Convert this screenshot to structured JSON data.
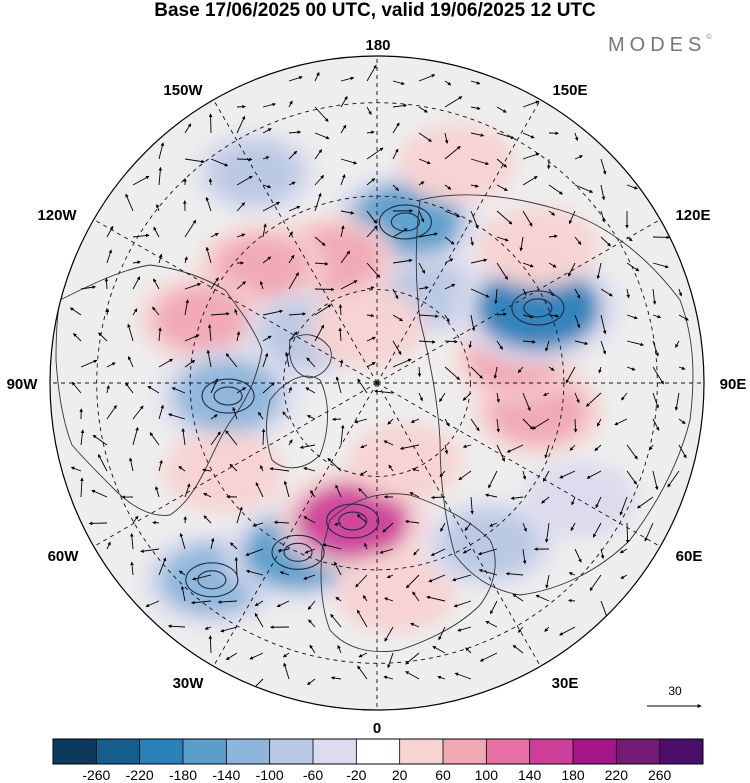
{
  "title": "Base 17/06/2025 00 UTC, valid 19/06/2025 12 UTC",
  "brand": "MODES",
  "brand_mark": "©",
  "longitude_labels": {
    "top": "180",
    "bottom": "0",
    "left": "90W",
    "right": "90E",
    "upper_left": "150W",
    "upper_right": "150E",
    "mid_upper_left": "120W",
    "mid_upper_right": "120E",
    "mid_lower_left": "60W",
    "mid_lower_right": "60E",
    "lower_left": "30W",
    "lower_right": "30E"
  },
  "vector_reference": {
    "value": "30"
  },
  "colorbar": {
    "ticks": [
      "-260",
      "-220",
      "-180",
      "-140",
      "-100",
      "-60",
      "-20",
      "20",
      "60",
      "100",
      "140",
      "180",
      "220",
      "260"
    ],
    "colors": [
      "#0d3a5c",
      "#155f8f",
      "#2a80b9",
      "#5a9fcc",
      "#8db6da",
      "#b9c8e4",
      "#dcdcee",
      "#ffffff",
      "#f7d3d3",
      "#f0a8b4",
      "#e66fa3",
      "#cd3f99",
      "#a5168a",
      "#761a78",
      "#4a0f6a"
    ]
  },
  "anomalies": [
    {
      "lon": 170,
      "lat": 55,
      "value": -150
    },
    {
      "lon": 150,
      "lat": 68,
      "value": -60
    },
    {
      "lon": -160,
      "lat": 62,
      "value": 90
    },
    {
      "lon": -135,
      "lat": 55,
      "value": 80
    },
    {
      "lon": -150,
      "lat": 38,
      "value": -60
    },
    {
      "lon": -110,
      "lat": 50,
      "value": 80
    },
    {
      "lon": -125,
      "lat": 72,
      "value": -80
    },
    {
      "lon": -85,
      "lat": 58,
      "value": -130
    },
    {
      "lon": -60,
      "lat": 52,
      "value": 60
    },
    {
      "lon": -40,
      "lat": 35,
      "value": -120
    },
    {
      "lon": -25,
      "lat": 50,
      "value": -140
    },
    {
      "lon": -10,
      "lat": 60,
      "value": 150
    },
    {
      "lon": 5,
      "lat": 45,
      "value": 60
    },
    {
      "lon": 35,
      "lat": 48,
      "value": -90
    },
    {
      "lon": 60,
      "lat": 40,
      "value": -40
    },
    {
      "lon": 80,
      "lat": 55,
      "value": 90
    },
    {
      "lon": 100,
      "lat": 60,
      "value": 70
    },
    {
      "lon": 115,
      "lat": 52,
      "value": -200
    },
    {
      "lon": 130,
      "lat": 45,
      "value": 60
    },
    {
      "lon": 160,
      "lat": 40,
      "value": 50
    },
    {
      "lon": 20,
      "lat": 72,
      "value": 40
    },
    {
      "lon": -170,
      "lat": 78,
      "value": 50
    }
  ]
}
